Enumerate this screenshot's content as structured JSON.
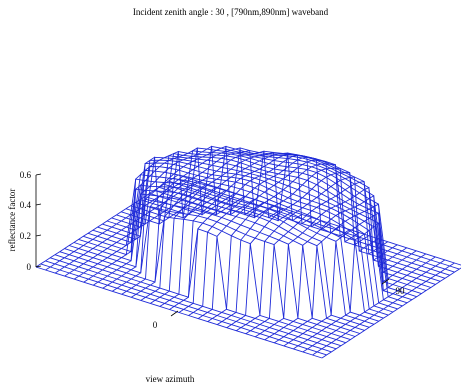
{
  "chart_data": {
    "type": "surface",
    "title": "Incident zenith angle : 30   , [790nm,890nm] waveband",
    "xlabel": "view azimuth",
    "ylabel": "reflectance factor",
    "z_ticks": [
      "0",
      "0.2",
      "0.4",
      "0.6"
    ],
    "zlim": [
      0,
      0.6
    ],
    "azimuth_ticks": [
      "0",
      "90"
    ],
    "wire_color": "#1f2bd8",
    "grid": "polar view hemisphere (zenith × azimuth) wireframe",
    "surface": {
      "base_level": 0,
      "plateau_edge_level": 0.45,
      "peak_level": 0.6,
      "hotspot": "bright crest toward back, near view azimuth ~60"
    }
  }
}
